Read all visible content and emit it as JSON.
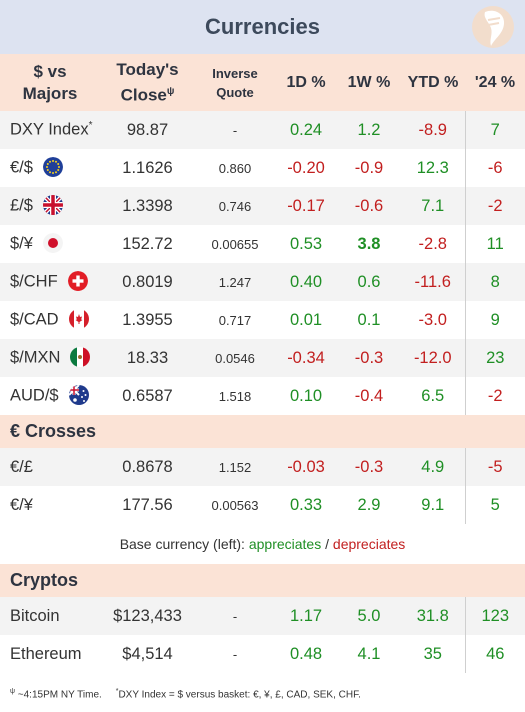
{
  "title": "Currencies",
  "headers": {
    "pair_line1": "$ vs",
    "pair_line2": "Majors",
    "close_line1": "Today's",
    "close_line2": "Close",
    "close_mark": "ψ",
    "inverse_line1": "Inverse",
    "inverse_line2": "Quote",
    "d1": "1D %",
    "w1": "1W %",
    "ytd": "YTD %",
    "y24": "'24 %"
  },
  "majors": [
    {
      "name": "DXY Index",
      "mark": "*",
      "flag": "",
      "close": "98.87",
      "inverse": "-",
      "d1": "0.24",
      "w1": "1.2",
      "ytd": "-8.9",
      "y24": "7"
    },
    {
      "name": "€/$",
      "mark": "",
      "flag": "eu-flag-icon",
      "close": "1.1626",
      "inverse": "0.860",
      "d1": "-0.20",
      "w1": "-0.9",
      "ytd": "12.3",
      "y24": "-6"
    },
    {
      "name": "£/$",
      "mark": "",
      "flag": "uk-flag-icon",
      "close": "1.3398",
      "inverse": "0.746",
      "d1": "-0.17",
      "w1": "-0.6",
      "ytd": "7.1",
      "y24": "-2"
    },
    {
      "name": "$/¥",
      "mark": "",
      "flag": "japan-flag-icon",
      "close": "152.72",
      "inverse": "0.00655",
      "d1": "0.53",
      "w1": "3.8",
      "ytd": "-2.8",
      "y24": "11"
    },
    {
      "name": "$/CHF",
      "mark": "",
      "flag": "swiss-flag-icon",
      "close": "0.8019",
      "inverse": "1.247",
      "d1": "0.40",
      "w1": "0.6",
      "ytd": "-11.6",
      "y24": "8"
    },
    {
      "name": "$/CAD",
      "mark": "",
      "flag": "canada-flag-icon",
      "close": "1.3955",
      "inverse": "0.717",
      "d1": "0.01",
      "w1": "0.1",
      "ytd": "-3.0",
      "y24": "9"
    },
    {
      "name": "$/MXN",
      "mark": "",
      "flag": "mexico-flag-icon",
      "close": "18.33",
      "inverse": "0.0546",
      "d1": "-0.34",
      "w1": "-0.3",
      "ytd": "-12.0",
      "y24": "23"
    },
    {
      "name": "AUD/$",
      "mark": "",
      "flag": "australia-flag-icon",
      "close": "0.6587",
      "inverse": "1.518",
      "d1": "0.10",
      "w1": "-0.4",
      "ytd": "6.5",
      "y24": "-2"
    }
  ],
  "crosses_title": "€ Crosses",
  "crosses": [
    {
      "name": "€/£",
      "close": "0.8678",
      "inverse": "1.152",
      "d1": "-0.03",
      "w1": "-0.3",
      "ytd": "4.9",
      "y24": "-5"
    },
    {
      "name": "€/¥",
      "close": "177.56",
      "inverse": "0.00563",
      "d1": "0.33",
      "w1": "2.9",
      "ytd": "9.1",
      "y24": "5"
    }
  ],
  "legend": {
    "prefix": "Base currency (left):",
    "appreciates": "appreciates",
    "sep": "/",
    "depreciates": "depreciates"
  },
  "cryptos_title": "Cryptos",
  "cryptos": [
    {
      "name": "Bitcoin",
      "close": "$123,433",
      "inverse": "-",
      "d1": "1.17",
      "w1": "5.0",
      "ytd": "31.8",
      "y24": "123"
    },
    {
      "name": "Ethereum",
      "close": "$4,514",
      "inverse": "-",
      "d1": "0.48",
      "w1": "4.1",
      "ytd": "35",
      "y24": "46"
    }
  ],
  "footer": {
    "mark1": "ψ",
    "note1": "~4:15PM NY Time.",
    "mark2": "*",
    "note2": "DXY Index = $ versus basket: €, ¥, £, CAD, SEK, CHF."
  },
  "colors": {
    "positive": "#1f8f25",
    "negative": "#c21f1f",
    "title_bg": "#dde3f1",
    "header_bg": "#fbe3d6",
    "alt_row": "#f3f3f3"
  },
  "bold_cells": [
    "majors.3.w1"
  ]
}
